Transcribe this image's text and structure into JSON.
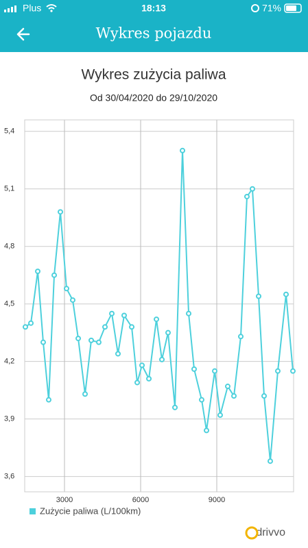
{
  "status_bar": {
    "carrier": "Plus",
    "time": "18:13",
    "battery": "71%"
  },
  "header": {
    "title": "Wykres pojazdu"
  },
  "chart_data": {
    "type": "line",
    "title": "Wykres zużycia paliwa",
    "subtitle": "Od 30/04/2020 do 29/10/2020",
    "x": [
      1459,
      1676,
      1946,
      2162,
      2378,
      2595,
      2838,
      3081,
      3324,
      3541,
      3811,
      4054,
      4351,
      4595,
      4865,
      5108,
      5351,
      5649,
      5865,
      6054,
      6325,
      6622,
      6838,
      7081,
      7352,
      7649,
      7892,
      8108,
      8405,
      8595,
      8919,
      9135,
      9432,
      9676,
      9946,
      10189,
      10405,
      10649,
      10865,
      11108,
      11405,
      11730,
      12000
    ],
    "series": [
      {
        "name": "Zużycie paliwa (L/100km)",
        "color": "#4dd0dc",
        "values": [
          4.38,
          4.4,
          4.67,
          4.3,
          4.0,
          4.65,
          4.98,
          4.58,
          4.52,
          4.32,
          4.03,
          4.31,
          4.3,
          4.38,
          4.45,
          4.24,
          4.44,
          4.38,
          4.09,
          4.18,
          4.11,
          4.42,
          4.21,
          4.35,
          3.96,
          5.3,
          4.45,
          4.16,
          4.0,
          3.84,
          4.15,
          3.92,
          4.07,
          4.02,
          4.33,
          5.06,
          5.1,
          4.54,
          4.02,
          3.68,
          4.15,
          4.55,
          4.15
        ]
      }
    ],
    "xlim": [
      1432,
      12027
    ],
    "ylim": [
      3.52,
      5.46
    ],
    "xticks": [
      3000,
      6000,
      9000
    ],
    "yticks": [
      {
        "value": 3.6,
        "label": "3,6"
      },
      {
        "value": 3.9,
        "label": "3,9"
      },
      {
        "value": 4.2,
        "label": "4,2"
      },
      {
        "value": 4.5,
        "label": "4,5"
      },
      {
        "value": 4.8,
        "label": "4,8"
      },
      {
        "value": 5.1,
        "label": "5,1"
      },
      {
        "value": 5.4,
        "label": "5,4"
      }
    ],
    "grid": true
  },
  "footer": {
    "logo": "drivvo"
  }
}
